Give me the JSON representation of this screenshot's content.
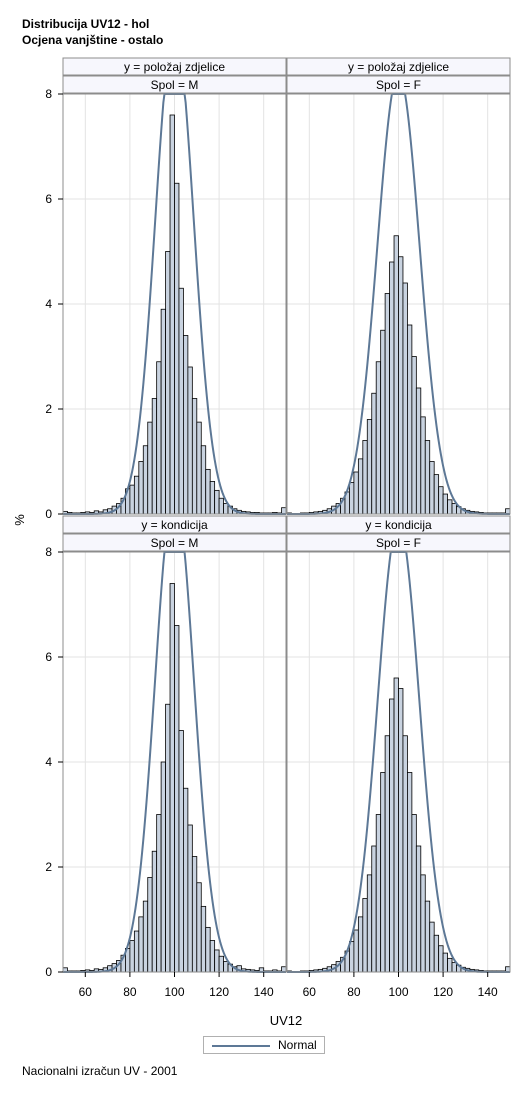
{
  "titles": {
    "line1": "Distribucija UV12 - hol",
    "line2": "Ocjena vanjštine - ostalo"
  },
  "footnote": "Nacionalni izračun UV - 2001",
  "legend": {
    "label": "Normal"
  },
  "colors": {
    "bar_fill": "#c9d3e0",
    "bar_stroke": "#000000",
    "normal_curve": "#5d7896",
    "header_bg": "#f7f7fd",
    "grid": "#e3e3e3",
    "frame": "#8c8c8c"
  },
  "chart_data": {
    "type": "bar",
    "subtype": "histogram panel (2x2) with normal density overlay",
    "xlabel": "UV12",
    "ylabel": "%",
    "xlim": [
      50,
      150
    ],
    "ylim": [
      0,
      8
    ],
    "xticks": [
      "60",
      "80",
      "100",
      "120",
      "140"
    ],
    "yticks": [
      "0",
      "2",
      "4",
      "6",
      "8"
    ],
    "bin_width": 2,
    "grid": true,
    "legend_position": "bottom-center",
    "panels": [
      {
        "row_header": "y = položaj zdjelice",
        "col_header": "Spol = M",
        "normal": {
          "mean": 100,
          "sd": 8.6
        },
        "bins": [
          {
            "x": 51,
            "y": 0.05
          },
          {
            "x": 53,
            "y": 0.03
          },
          {
            "x": 55,
            "y": 0.02
          },
          {
            "x": 57,
            "y": 0.02
          },
          {
            "x": 59,
            "y": 0.03
          },
          {
            "x": 61,
            "y": 0.04
          },
          {
            "x": 63,
            "y": 0.03
          },
          {
            "x": 65,
            "y": 0.06
          },
          {
            "x": 67,
            "y": 0.04
          },
          {
            "x": 69,
            "y": 0.08
          },
          {
            "x": 71,
            "y": 0.1
          },
          {
            "x": 73,
            "y": 0.15
          },
          {
            "x": 75,
            "y": 0.2
          },
          {
            "x": 77,
            "y": 0.3
          },
          {
            "x": 79,
            "y": 0.48
          },
          {
            "x": 81,
            "y": 0.55
          },
          {
            "x": 83,
            "y": 0.72
          },
          {
            "x": 85,
            "y": 1.0
          },
          {
            "x": 87,
            "y": 1.3
          },
          {
            "x": 89,
            "y": 1.75
          },
          {
            "x": 91,
            "y": 2.2
          },
          {
            "x": 93,
            "y": 2.9
          },
          {
            "x": 95,
            "y": 3.9
          },
          {
            "x": 97,
            "y": 5.0
          },
          {
            "x": 99,
            "y": 7.6
          },
          {
            "x": 101,
            "y": 6.3
          },
          {
            "x": 103,
            "y": 4.3
          },
          {
            "x": 105,
            "y": 3.4
          },
          {
            "x": 107,
            "y": 2.8
          },
          {
            "x": 109,
            "y": 2.2
          },
          {
            "x": 111,
            "y": 1.75
          },
          {
            "x": 113,
            "y": 1.3
          },
          {
            "x": 115,
            "y": 0.85
          },
          {
            "x": 117,
            "y": 0.62
          },
          {
            "x": 119,
            "y": 0.45
          },
          {
            "x": 121,
            "y": 0.3
          },
          {
            "x": 123,
            "y": 0.2
          },
          {
            "x": 125,
            "y": 0.15
          },
          {
            "x": 127,
            "y": 0.1
          },
          {
            "x": 129,
            "y": 0.07
          },
          {
            "x": 131,
            "y": 0.05
          },
          {
            "x": 133,
            "y": 0.04
          },
          {
            "x": 135,
            "y": 0.03
          },
          {
            "x": 137,
            "y": 0.03
          },
          {
            "x": 139,
            "y": 0.02
          },
          {
            "x": 141,
            "y": 0.02
          },
          {
            "x": 143,
            "y": 0.02
          },
          {
            "x": 145,
            "y": 0.03
          },
          {
            "x": 147,
            "y": 0.02
          },
          {
            "x": 149,
            "y": 0.12
          }
        ]
      },
      {
        "row_header": "y = položaj zdjelice",
        "col_header": "Spol = F",
        "normal": {
          "mean": 100,
          "sd": 9.5
        },
        "bins": [
          {
            "x": 51,
            "y": 0.02
          },
          {
            "x": 53,
            "y": 0.01
          },
          {
            "x": 55,
            "y": 0.01
          },
          {
            "x": 57,
            "y": 0.02
          },
          {
            "x": 59,
            "y": 0.02
          },
          {
            "x": 61,
            "y": 0.03
          },
          {
            "x": 63,
            "y": 0.04
          },
          {
            "x": 65,
            "y": 0.05
          },
          {
            "x": 67,
            "y": 0.07
          },
          {
            "x": 69,
            "y": 0.1
          },
          {
            "x": 71,
            "y": 0.15
          },
          {
            "x": 73,
            "y": 0.2
          },
          {
            "x": 75,
            "y": 0.3
          },
          {
            "x": 77,
            "y": 0.42
          },
          {
            "x": 79,
            "y": 0.6
          },
          {
            "x": 81,
            "y": 0.8
          },
          {
            "x": 83,
            "y": 1.05
          },
          {
            "x": 85,
            "y": 1.4
          },
          {
            "x": 87,
            "y": 1.8
          },
          {
            "x": 89,
            "y": 2.3
          },
          {
            "x": 91,
            "y": 2.9
          },
          {
            "x": 93,
            "y": 3.5
          },
          {
            "x": 95,
            "y": 4.2
          },
          {
            "x": 97,
            "y": 4.8
          },
          {
            "x": 99,
            "y": 5.3
          },
          {
            "x": 101,
            "y": 4.9
          },
          {
            "x": 103,
            "y": 4.4
          },
          {
            "x": 105,
            "y": 3.6
          },
          {
            "x": 107,
            "y": 3.0
          },
          {
            "x": 109,
            "y": 2.4
          },
          {
            "x": 111,
            "y": 1.85
          },
          {
            "x": 113,
            "y": 1.4
          },
          {
            "x": 115,
            "y": 1.0
          },
          {
            "x": 117,
            "y": 0.75
          },
          {
            "x": 119,
            "y": 0.52
          },
          {
            "x": 121,
            "y": 0.38
          },
          {
            "x": 123,
            "y": 0.27
          },
          {
            "x": 125,
            "y": 0.2
          },
          {
            "x": 127,
            "y": 0.14
          },
          {
            "x": 129,
            "y": 0.1
          },
          {
            "x": 131,
            "y": 0.07
          },
          {
            "x": 133,
            "y": 0.05
          },
          {
            "x": 135,
            "y": 0.04
          },
          {
            "x": 137,
            "y": 0.03
          },
          {
            "x": 139,
            "y": 0.02
          },
          {
            "x": 141,
            "y": 0.02
          },
          {
            "x": 143,
            "y": 0.02
          },
          {
            "x": 145,
            "y": 0.02
          },
          {
            "x": 147,
            "y": 0.02
          },
          {
            "x": 149,
            "y": 0.1
          }
        ]
      },
      {
        "row_header": "y = kondicija",
        "col_header": "Spol = M",
        "normal": {
          "mean": 100,
          "sd": 8.7
        },
        "bins": [
          {
            "x": 51,
            "y": 0.08
          },
          {
            "x": 53,
            "y": 0.02
          },
          {
            "x": 55,
            "y": 0.02
          },
          {
            "x": 57,
            "y": 0.02
          },
          {
            "x": 59,
            "y": 0.03
          },
          {
            "x": 61,
            "y": 0.04
          },
          {
            "x": 63,
            "y": 0.03
          },
          {
            "x": 65,
            "y": 0.06
          },
          {
            "x": 67,
            "y": 0.05
          },
          {
            "x": 69,
            "y": 0.08
          },
          {
            "x": 71,
            "y": 0.12
          },
          {
            "x": 73,
            "y": 0.16
          },
          {
            "x": 75,
            "y": 0.22
          },
          {
            "x": 77,
            "y": 0.32
          },
          {
            "x": 79,
            "y": 0.45
          },
          {
            "x": 81,
            "y": 0.6
          },
          {
            "x": 83,
            "y": 0.78
          },
          {
            "x": 85,
            "y": 1.05
          },
          {
            "x": 87,
            "y": 1.35
          },
          {
            "x": 89,
            "y": 1.8
          },
          {
            "x": 91,
            "y": 2.3
          },
          {
            "x": 93,
            "y": 3.0
          },
          {
            "x": 95,
            "y": 4.0
          },
          {
            "x": 97,
            "y": 5.1
          },
          {
            "x": 99,
            "y": 7.4
          },
          {
            "x": 101,
            "y": 6.6
          },
          {
            "x": 103,
            "y": 4.6
          },
          {
            "x": 105,
            "y": 3.5
          },
          {
            "x": 107,
            "y": 2.8
          },
          {
            "x": 109,
            "y": 2.2
          },
          {
            "x": 111,
            "y": 1.7
          },
          {
            "x": 113,
            "y": 1.25
          },
          {
            "x": 115,
            "y": 0.85
          },
          {
            "x": 117,
            "y": 0.6
          },
          {
            "x": 119,
            "y": 0.42
          },
          {
            "x": 121,
            "y": 0.3
          },
          {
            "x": 123,
            "y": 0.2
          },
          {
            "x": 125,
            "y": 0.15
          },
          {
            "x": 127,
            "y": 0.1
          },
          {
            "x": 129,
            "y": 0.12
          },
          {
            "x": 131,
            "y": 0.06
          },
          {
            "x": 133,
            "y": 0.05
          },
          {
            "x": 135,
            "y": 0.04
          },
          {
            "x": 137,
            "y": 0.03
          },
          {
            "x": 139,
            "y": 0.08
          },
          {
            "x": 141,
            "y": 0.02
          },
          {
            "x": 143,
            "y": 0.02
          },
          {
            "x": 145,
            "y": 0.04
          },
          {
            "x": 147,
            "y": 0.02
          },
          {
            "x": 149,
            "y": 0.1
          }
        ]
      },
      {
        "row_header": "y = kondicija",
        "col_header": "Spol = F",
        "normal": {
          "mean": 100,
          "sd": 9.3
        },
        "bins": [
          {
            "x": 51,
            "y": 0.02
          },
          {
            "x": 53,
            "y": 0.01
          },
          {
            "x": 55,
            "y": 0.01
          },
          {
            "x": 57,
            "y": 0.02
          },
          {
            "x": 59,
            "y": 0.02
          },
          {
            "x": 61,
            "y": 0.03
          },
          {
            "x": 63,
            "y": 0.04
          },
          {
            "x": 65,
            "y": 0.05
          },
          {
            "x": 67,
            "y": 0.07
          },
          {
            "x": 69,
            "y": 0.1
          },
          {
            "x": 71,
            "y": 0.14
          },
          {
            "x": 73,
            "y": 0.2
          },
          {
            "x": 75,
            "y": 0.28
          },
          {
            "x": 77,
            "y": 0.4
          },
          {
            "x": 79,
            "y": 0.58
          },
          {
            "x": 81,
            "y": 0.8
          },
          {
            "x": 83,
            "y": 1.05
          },
          {
            "x": 85,
            "y": 1.4
          },
          {
            "x": 87,
            "y": 1.85
          },
          {
            "x": 89,
            "y": 2.4
          },
          {
            "x": 91,
            "y": 3.0
          },
          {
            "x": 93,
            "y": 3.8
          },
          {
            "x": 95,
            "y": 4.5
          },
          {
            "x": 97,
            "y": 5.2
          },
          {
            "x": 99,
            "y": 5.6
          },
          {
            "x": 101,
            "y": 5.4
          },
          {
            "x": 103,
            "y": 4.5
          },
          {
            "x": 105,
            "y": 3.8
          },
          {
            "x": 107,
            "y": 3.0
          },
          {
            "x": 109,
            "y": 2.4
          },
          {
            "x": 111,
            "y": 1.85
          },
          {
            "x": 113,
            "y": 1.35
          },
          {
            "x": 115,
            "y": 0.95
          },
          {
            "x": 117,
            "y": 0.7
          },
          {
            "x": 119,
            "y": 0.5
          },
          {
            "x": 121,
            "y": 0.36
          },
          {
            "x": 123,
            "y": 0.26
          },
          {
            "x": 125,
            "y": 0.18
          },
          {
            "x": 127,
            "y": 0.13
          },
          {
            "x": 129,
            "y": 0.09
          },
          {
            "x": 131,
            "y": 0.07
          },
          {
            "x": 133,
            "y": 0.05
          },
          {
            "x": 135,
            "y": 0.04
          },
          {
            "x": 137,
            "y": 0.03
          },
          {
            "x": 139,
            "y": 0.02
          },
          {
            "x": 141,
            "y": 0.02
          },
          {
            "x": 143,
            "y": 0.02
          },
          {
            "x": 145,
            "y": 0.02
          },
          {
            "x": 147,
            "y": 0.02
          },
          {
            "x": 149,
            "y": 0.1
          }
        ]
      }
    ]
  }
}
